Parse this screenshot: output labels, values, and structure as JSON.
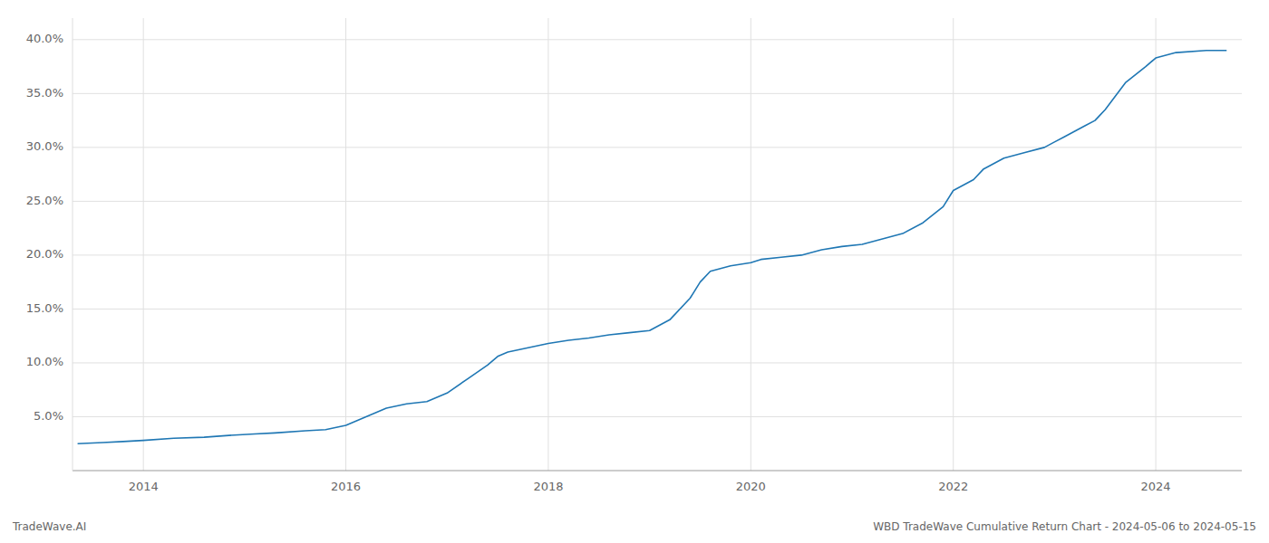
{
  "chart_data": {
    "type": "line",
    "title": "WBD TradeWave Cumulative Return Chart - 2024-05-06 to 2024-05-15",
    "subtitle": "TradeWave.AI",
    "color": "#1f77b4",
    "grid": true,
    "xlim": [
      2013.3,
      2024.85
    ],
    "ylim": [
      0.0,
      0.42
    ],
    "xticks": [
      2014,
      2016,
      2018,
      2020,
      2022,
      2024
    ],
    "yticks": [
      {
        "value": 0.05,
        "label": "5.0%"
      },
      {
        "value": 0.1,
        "label": "10.0%"
      },
      {
        "value": 0.15,
        "label": "15.0%"
      },
      {
        "value": 0.2,
        "label": "20.0%"
      },
      {
        "value": 0.25,
        "label": "25.0%"
      },
      {
        "value": 0.3,
        "label": "30.0%"
      },
      {
        "value": 0.35,
        "label": "35.0%"
      },
      {
        "value": 0.4,
        "label": "40.0%"
      }
    ],
    "x": [
      2013.35,
      2013.6,
      2013.8,
      2014.0,
      2014.3,
      2014.6,
      2014.9,
      2015.1,
      2015.3,
      2015.6,
      2015.8,
      2016.0,
      2016.2,
      2016.4,
      2016.6,
      2016.8,
      2017.0,
      2017.2,
      2017.4,
      2017.5,
      2017.6,
      2017.8,
      2018.0,
      2018.2,
      2018.4,
      2018.6,
      2018.8,
      2019.0,
      2019.2,
      2019.4,
      2019.5,
      2019.6,
      2019.8,
      2020.0,
      2020.1,
      2020.3,
      2020.5,
      2020.7,
      2020.9,
      2021.1,
      2021.3,
      2021.5,
      2021.7,
      2021.9,
      2022.0,
      2022.2,
      2022.3,
      2022.5,
      2022.7,
      2022.9,
      2023.0,
      2023.1,
      2023.2,
      2023.3,
      2023.4,
      2023.45,
      2023.5,
      2023.7,
      2023.9,
      2024.0,
      2024.2,
      2024.5,
      2024.7
    ],
    "values": [
      0.025,
      0.026,
      0.027,
      0.028,
      0.03,
      0.031,
      0.033,
      0.034,
      0.035,
      0.037,
      0.038,
      0.042,
      0.05,
      0.058,
      0.062,
      0.064,
      0.072,
      0.085,
      0.098,
      0.106,
      0.11,
      0.114,
      0.118,
      0.121,
      0.123,
      0.126,
      0.128,
      0.13,
      0.14,
      0.16,
      0.175,
      0.185,
      0.19,
      0.193,
      0.196,
      0.198,
      0.2,
      0.205,
      0.208,
      0.21,
      0.215,
      0.22,
      0.23,
      0.245,
      0.26,
      0.27,
      0.28,
      0.29,
      0.295,
      0.3,
      0.305,
      0.31,
      0.315,
      0.32,
      0.325,
      0.33,
      0.335,
      0.36,
      0.375,
      0.383,
      0.388,
      0.39,
      0.39
    ]
  }
}
